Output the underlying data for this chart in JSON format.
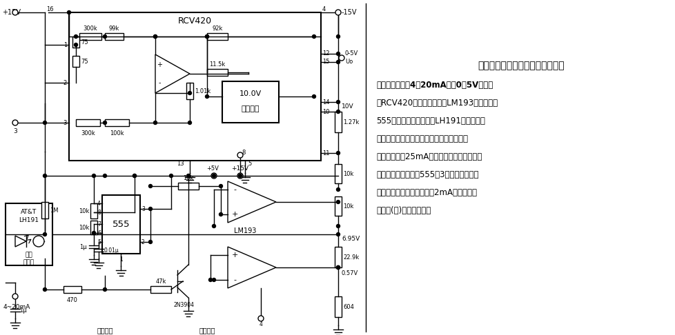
{
  "bg_color": "#ffffff",
  "circuit_color": "#000000",
  "title_line": "具有输入超限保护的电流－电压变",
  "text_lines": [
    "换电路　　利用4～20mA变到0～5V的变换",
    "器RCV420、双电压比较器LM193、时基电路",
    "555和光触发固态继电器LH191，可构成具",
    "有输入超限保护的电流－电压变换电路。当",
    "输入电流大于25mA时，过量程比较器（上）",
    "输出翻转为低电平，555的3脚输出高电平，",
    "固态继电器截止。输入小于2mA时，欠量程",
    "比较器(下)输出高电平。"
  ]
}
